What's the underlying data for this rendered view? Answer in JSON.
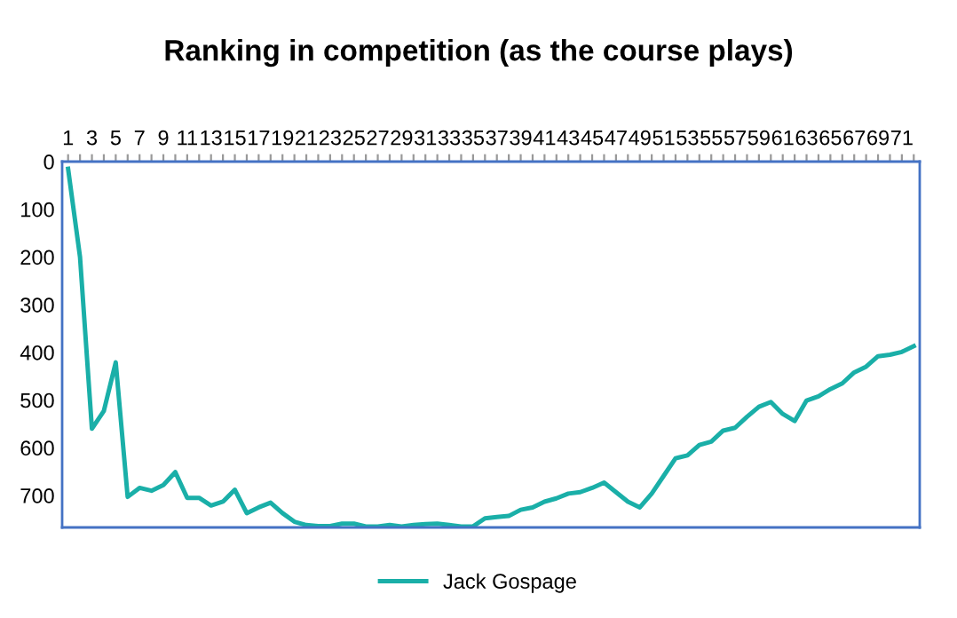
{
  "chart_data": {
    "type": "line",
    "title": "Ranking in competition (as the course plays)",
    "categories": [
      "1",
      null,
      "3",
      null,
      "5",
      null,
      "7",
      null,
      "9",
      null,
      "11",
      null,
      "13",
      null,
      "15",
      null,
      "17",
      null,
      "19",
      null,
      "21",
      null,
      "23",
      null,
      "25",
      null,
      "27",
      null,
      "29",
      null,
      "31",
      null,
      "33",
      null,
      "35",
      null,
      "37",
      null,
      "39",
      null,
      "41",
      null,
      "43",
      null,
      "45",
      null,
      "47",
      null,
      "49",
      null,
      "51",
      null,
      "53",
      null,
      "55",
      null,
      "57",
      null,
      "59",
      null,
      "61",
      null,
      "63",
      null,
      "65",
      null,
      "67",
      null,
      "69",
      null,
      "71",
      null
    ],
    "series": [
      {
        "name": "Jack Gospage",
        "color": "#1aafa8",
        "values": [
          15,
          200,
          560,
          523,
          421,
          703,
          684,
          690,
          678,
          651,
          705,
          705,
          721,
          713,
          688,
          737,
          725,
          715,
          737,
          755,
          762,
          764,
          764,
          759,
          759,
          765,
          765,
          762,
          765,
          762,
          760,
          759,
          762,
          765,
          765,
          748,
          745,
          743,
          730,
          725,
          713,
          706,
          696,
          693,
          684,
          673,
          693,
          713,
          725,
          696,
          659,
          622,
          616,
          594,
          587,
          564,
          558,
          535,
          514,
          504,
          529,
          544,
          501,
          492,
          477,
          465,
          442,
          430,
          408,
          405,
          399,
          387
        ]
      }
    ],
    "ylim": [
      767,
      0
    ],
    "yticks": [
      0,
      100,
      200,
      300,
      400,
      500,
      600,
      700
    ],
    "grid": false,
    "legend": "bottom",
    "marker": "none",
    "line_style": "solid"
  }
}
